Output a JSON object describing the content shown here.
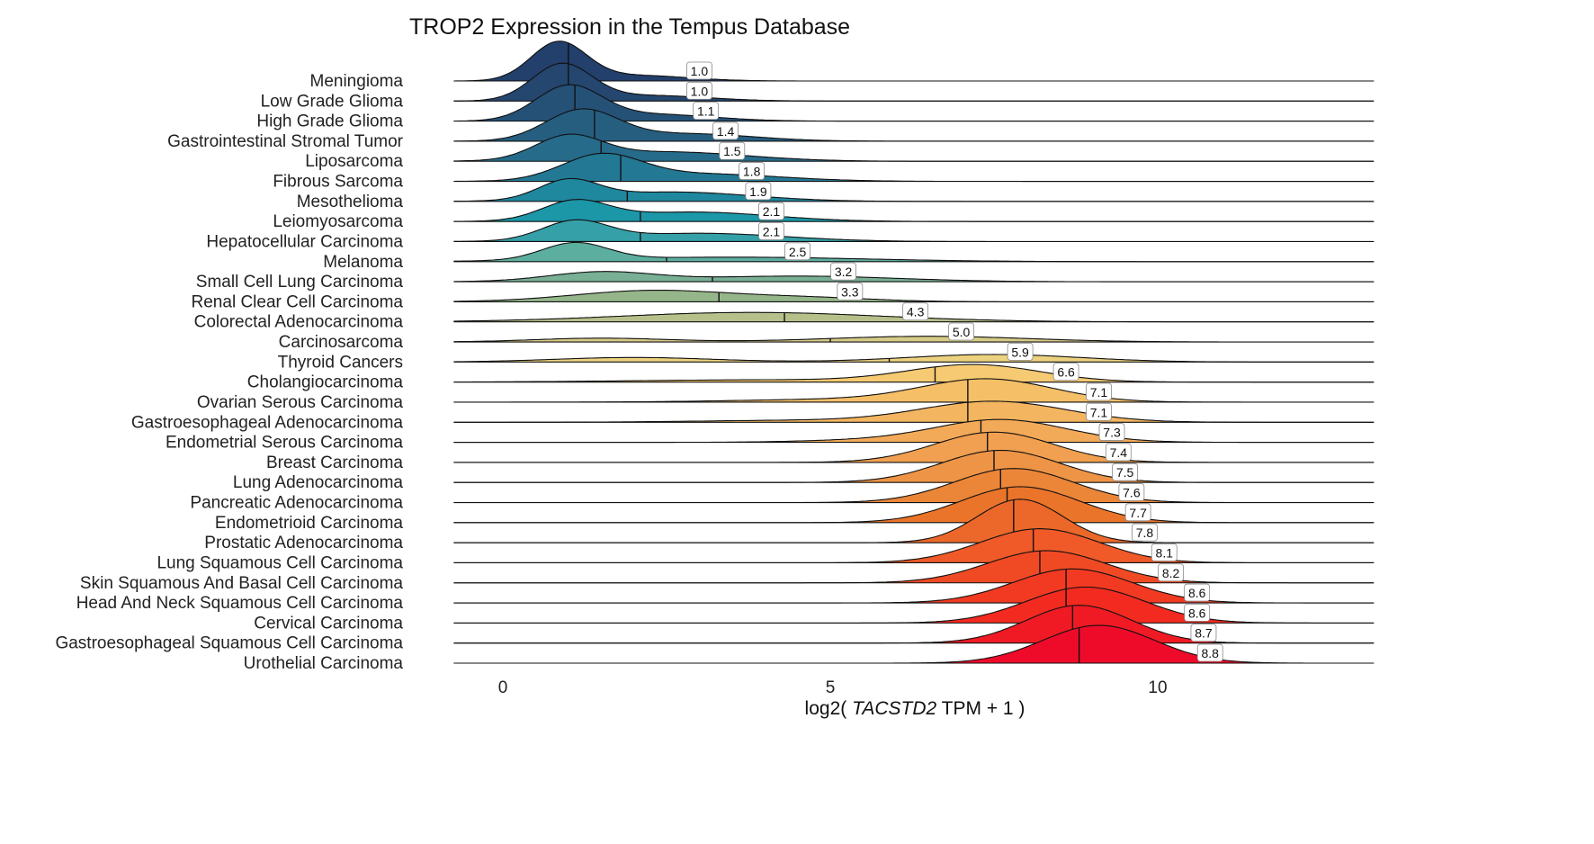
{
  "chart_data": {
    "type": "ridgeline",
    "title": "TROP2 Expression in the Tempus Database",
    "xlabel_prefix": "log2( ",
    "xlabel_italic": "TACSTD2",
    "xlabel_suffix": " TPM + 1 )",
    "xlim": [
      -0.75,
      13.3
    ],
    "xticks": [
      0,
      5,
      10
    ],
    "xtick_labels": [
      "0",
      "5",
      "10"
    ],
    "grid": false,
    "rows": [
      {
        "name": "Meningioma",
        "median": 1.0,
        "median_label": "1.0",
        "color": "#233f6b",
        "density_shape": [
          [
            0.85,
            0.42,
            1.0
          ],
          [
            2.0,
            0.8,
            0.15
          ]
        ]
      },
      {
        "name": "Low Grade Glioma",
        "median": 1.0,
        "median_label": "1.0",
        "color": "#24466f",
        "density_shape": [
          [
            0.9,
            0.45,
            0.95
          ],
          [
            2.2,
            0.9,
            0.15
          ]
        ]
      },
      {
        "name": "High Grade Glioma",
        "median": 1.1,
        "median_label": "1.1",
        "color": "#255177",
        "density_shape": [
          [
            1.0,
            0.5,
            0.9
          ],
          [
            2.3,
            0.9,
            0.18
          ]
        ]
      },
      {
        "name": "Gastrointestinal Stromal Tumor",
        "median": 1.4,
        "median_label": "1.4",
        "color": "#265e80",
        "density_shape": [
          [
            1.2,
            0.55,
            0.8
          ],
          [
            2.8,
            1.0,
            0.2
          ]
        ]
      },
      {
        "name": "Liposarcoma",
        "median": 1.5,
        "median_label": "1.5",
        "color": "#266b8a",
        "density_shape": [
          [
            1.0,
            0.5,
            0.6
          ],
          [
            2.5,
            1.2,
            0.25
          ]
        ]
      },
      {
        "name": "Fibrous Sarcoma",
        "median": 1.8,
        "median_label": "1.8",
        "color": "#237893",
        "density_shape": [
          [
            1.5,
            0.6,
            0.65
          ],
          [
            3.0,
            1.2,
            0.2
          ]
        ]
      },
      {
        "name": "Mesothelioma",
        "median": 1.9,
        "median_label": "1.9",
        "color": "#1f879e",
        "density_shape": [
          [
            1.0,
            0.45,
            0.5
          ],
          [
            2.6,
            1.2,
            0.25
          ]
        ]
      },
      {
        "name": "Leiomyosarcoma",
        "median": 2.1,
        "median_label": "2.1",
        "color": "#1b97a8",
        "density_shape": [
          [
            1.1,
            0.5,
            0.5
          ],
          [
            2.9,
            1.2,
            0.25
          ]
        ]
      },
      {
        "name": "Hepatocellular Carcinoma",
        "median": 2.1,
        "median_label": "2.1",
        "color": "#35a0a8",
        "density_shape": [
          [
            1.1,
            0.5,
            0.5
          ],
          [
            3.0,
            1.3,
            0.22
          ]
        ]
      },
      {
        "name": "Melanoma",
        "median": 2.5,
        "median_label": "2.5",
        "color": "#5cae9f",
        "density_shape": [
          [
            1.1,
            0.5,
            0.45
          ],
          [
            3.5,
            2.0,
            0.12
          ]
        ]
      },
      {
        "name": "Small Cell Lung Carcinoma",
        "median": 3.2,
        "median_label": "3.2",
        "color": "#78af95",
        "density_shape": [
          [
            1.5,
            0.8,
            0.25
          ],
          [
            4.5,
            1.5,
            0.15
          ]
        ]
      },
      {
        "name": "Renal Clear Cell Carcinoma",
        "median": 3.3,
        "median_label": "3.3",
        "color": "#95b68a",
        "density_shape": [
          [
            2.3,
            1.2,
            0.3
          ],
          [
            4.7,
            1.0,
            0.1
          ]
        ]
      },
      {
        "name": "Colorectal Adenocarcinoma",
        "median": 4.3,
        "median_label": "4.3",
        "color": "#b6c08a",
        "density_shape": [
          [
            3.8,
            2.0,
            0.25
          ]
        ]
      },
      {
        "name": "Carcinosarcoma",
        "median": 5.0,
        "median_label": "5.0",
        "color": "#d6cb86",
        "density_shape": [
          [
            1.5,
            1.0,
            0.1
          ],
          [
            6.5,
            1.5,
            0.15
          ]
        ]
      },
      {
        "name": "Thyroid Cancers",
        "median": 5.9,
        "median_label": "5.9",
        "color": "#ecd27e",
        "density_shape": [
          [
            2.0,
            1.2,
            0.12
          ],
          [
            7.5,
            1.3,
            0.2
          ]
        ]
      },
      {
        "name": "Cholangiocarcinoma",
        "median": 6.6,
        "median_label": "6.6",
        "color": "#f6ca72",
        "density_shape": [
          [
            7.2,
            1.0,
            0.45
          ],
          [
            4.0,
            2.0,
            0.06
          ]
        ]
      },
      {
        "name": "Ovarian Serous Carcinoma",
        "median": 7.1,
        "median_label": "7.1",
        "color": "#f5bf68",
        "density_shape": [
          [
            7.4,
            1.0,
            0.6
          ],
          [
            5.0,
            1.5,
            0.07
          ]
        ]
      },
      {
        "name": "Gastroesophageal Adenocarcinoma",
        "median": 7.1,
        "median_label": "7.1",
        "color": "#f3b560",
        "density_shape": [
          [
            7.5,
            1.1,
            0.55
          ],
          [
            4.5,
            1.5,
            0.05
          ]
        ]
      },
      {
        "name": "Endometrial Serous Carcinoma",
        "median": 7.3,
        "median_label": "7.3",
        "color": "#f2aa58",
        "density_shape": [
          [
            7.6,
            1.0,
            0.6
          ],
          [
            5.5,
            1.0,
            0.05
          ]
        ]
      },
      {
        "name": "Breast Carcinoma",
        "median": 7.4,
        "median_label": "7.4",
        "color": "#f0a050",
        "density_shape": [
          [
            7.5,
            0.9,
            0.8
          ]
        ]
      },
      {
        "name": "Lung Adenocarcinoma",
        "median": 7.5,
        "median_label": "7.5",
        "color": "#ee9446",
        "density_shape": [
          [
            7.6,
            0.9,
            0.85
          ]
        ]
      },
      {
        "name": "Pancreatic Adenocarcinoma",
        "median": 7.6,
        "median_label": "7.6",
        "color": "#eb8638",
        "density_shape": [
          [
            7.8,
            0.9,
            0.9
          ]
        ]
      },
      {
        "name": "Endometrioid Carcinoma",
        "median": 7.7,
        "median_label": "7.7",
        "color": "#ea742a",
        "density_shape": [
          [
            7.9,
            0.9,
            0.95
          ]
        ]
      },
      {
        "name": "Prostatic Adenocarcinoma",
        "median": 7.8,
        "median_label": "7.8",
        "color": "#ec682a",
        "density_shape": [
          [
            7.9,
            0.65,
            1.15
          ]
        ]
      },
      {
        "name": "Lung Squamous Cell Carcinoma",
        "median": 8.1,
        "median_label": "8.1",
        "color": "#ef5a28",
        "density_shape": [
          [
            8.2,
            0.9,
            0.9
          ]
        ]
      },
      {
        "name": "Skin Squamous And Basal Cell Carcinoma",
        "median": 8.2,
        "median_label": "8.2",
        "color": "#f04a25",
        "density_shape": [
          [
            8.3,
            0.9,
            0.85
          ]
        ]
      },
      {
        "name": "Head And Neck Squamous Cell Carcinoma",
        "median": 8.6,
        "median_label": "8.6",
        "color": "#f23a22",
        "density_shape": [
          [
            8.7,
            0.9,
            0.9
          ]
        ]
      },
      {
        "name": "Cervical Carcinoma",
        "median": 8.6,
        "median_label": "8.6",
        "color": "#f22a20",
        "density_shape": [
          [
            8.9,
            0.9,
            0.95
          ]
        ]
      },
      {
        "name": "Gastroesophageal Squamous Cell Carcinoma",
        "median": 8.7,
        "median_label": "8.7",
        "color": "#f01a24",
        "density_shape": [
          [
            8.8,
            0.8,
            1.0
          ]
        ]
      },
      {
        "name": "Urothelial Carcinoma",
        "median": 8.8,
        "median_label": "8.8",
        "color": "#ee0b2a",
        "density_shape": [
          [
            9.1,
            0.85,
            1.0
          ]
        ]
      }
    ]
  }
}
